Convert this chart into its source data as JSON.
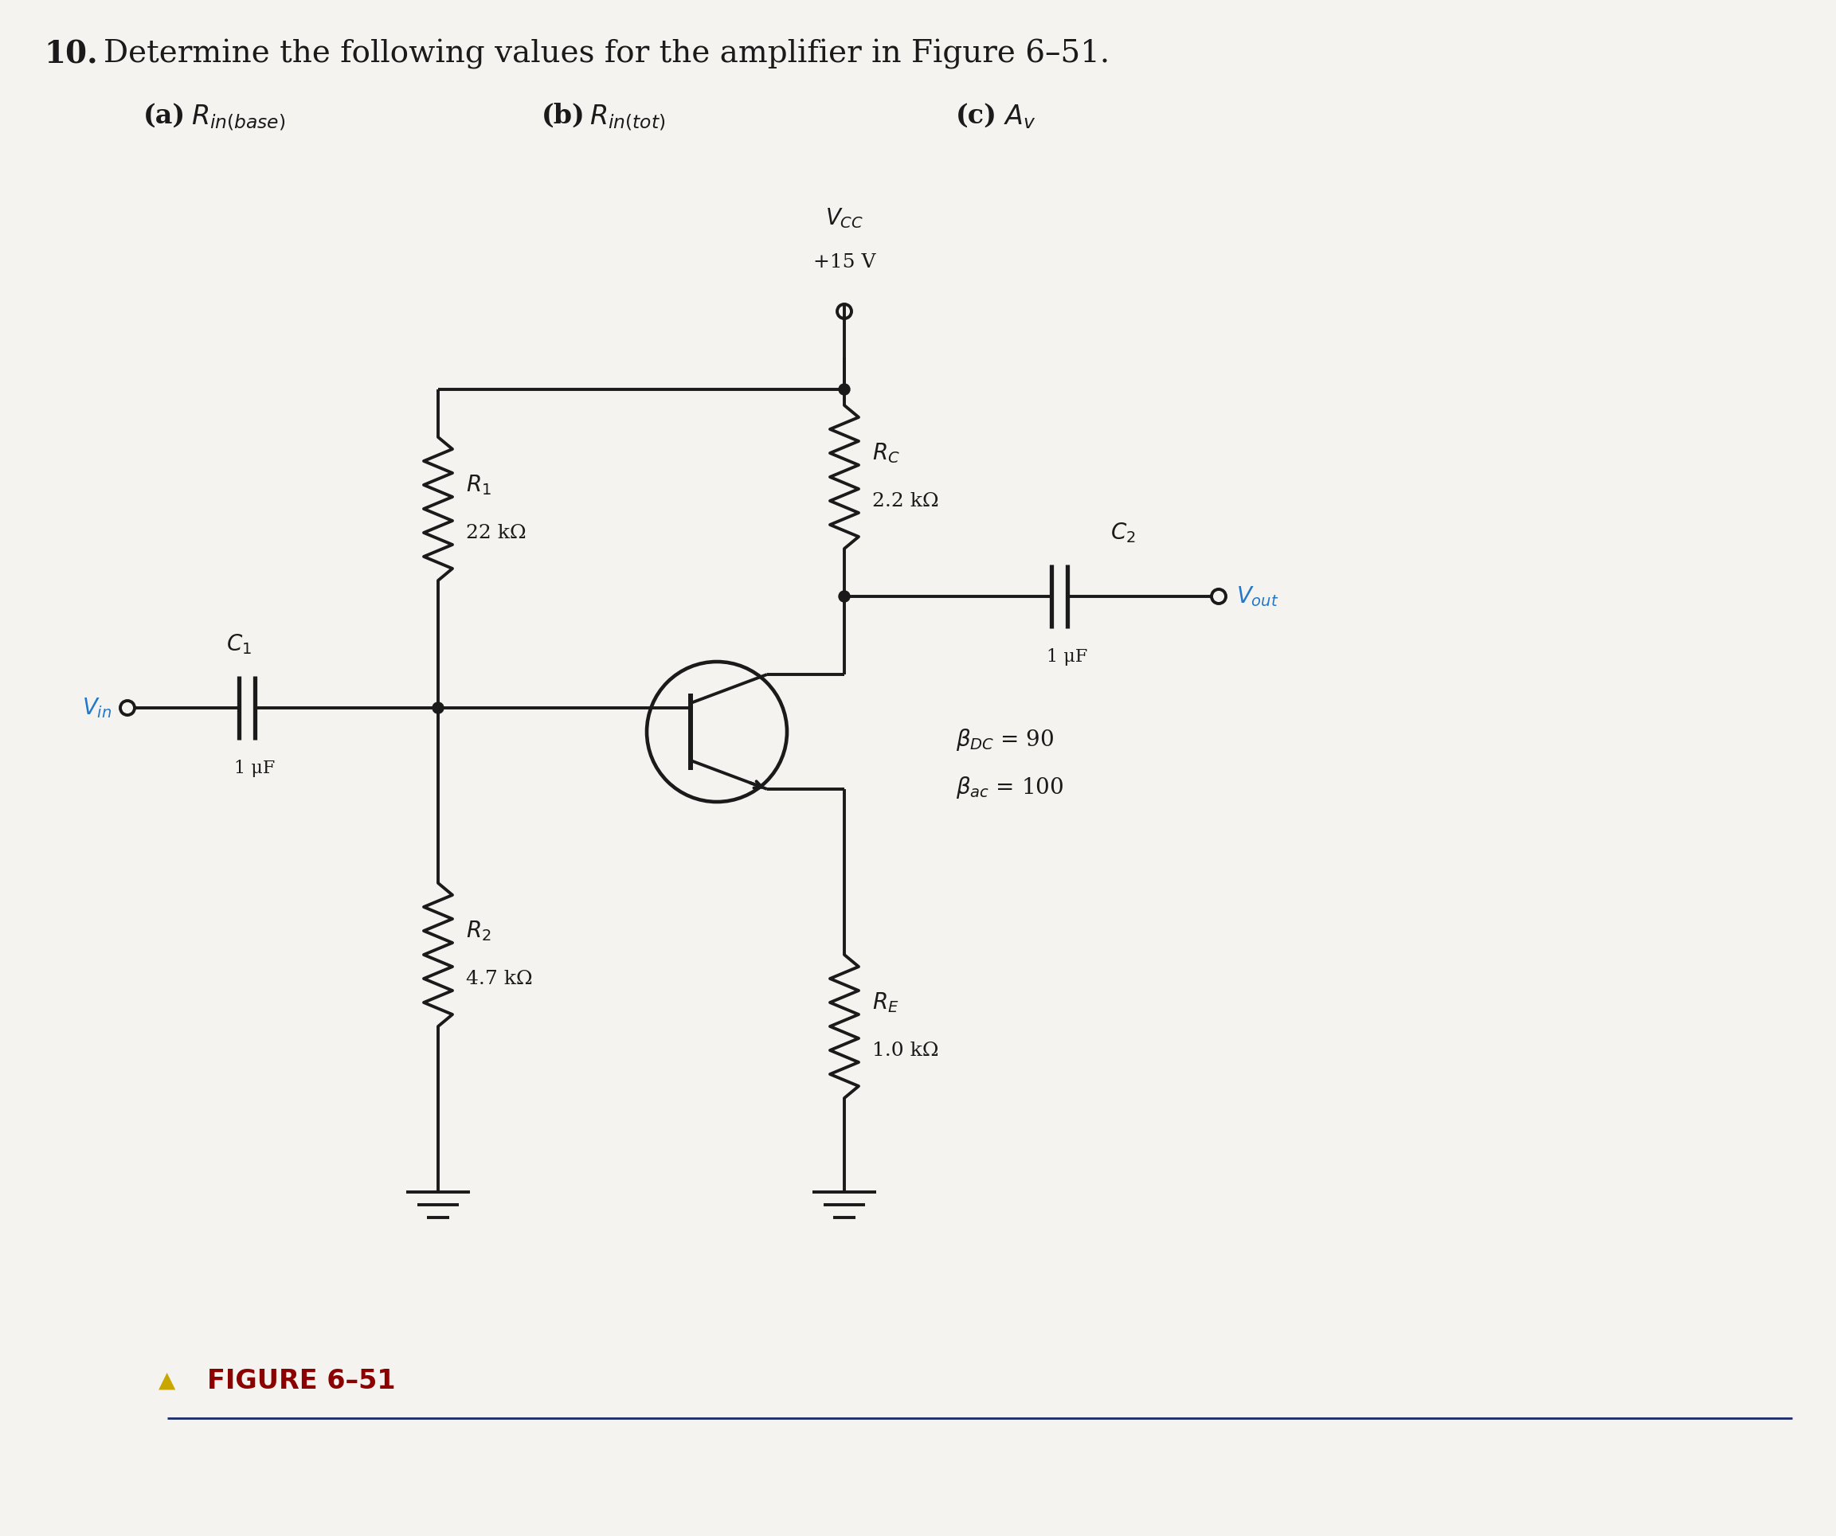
{
  "title_num": "10.",
  "title_text": "Determine the following values for the amplifier in Figure 6–51.",
  "sub_a": "(a)",
  "sub_a_math": "$R_{in(base)}$",
  "sub_b": "(b)",
  "sub_b_math": "$R_{in(tot)}$",
  "sub_c": "(c)",
  "sub_c_math": "$A_v$",
  "figure_label": "FIGURE 6–51",
  "bg_color": "#f5f3f0",
  "text_color": "#1a1a1a",
  "vcc_text1": "$V_{CC}$",
  "vcc_text2": "+15 V",
  "R1_sym": "$R_1$",
  "R1_val": "22 kΩ",
  "R2_sym": "$R_2$",
  "R2_val": "4.7 kΩ",
  "RC_sym": "$R_C$",
  "RC_val": "2.2 kΩ",
  "RE_sym": "$R_E$",
  "RE_val": "1.0 kΩ",
  "C1_sym": "$C_1$",
  "C1_val": "1 μF",
  "C2_sym": "$C_2$",
  "C2_val": "1 μF",
  "Vin_label": "$V_{in}$",
  "Vout_label": "$V_{out}$",
  "beta1": "$\\beta_{DC}$ = 90",
  "beta2": "$\\beta_{ac}$ = 100",
  "blue": "#2478c8",
  "black": "#1a1a1a",
  "dark_red": "#8b0000",
  "gold": "#c8a800",
  "navy": "#1a2a6a",
  "title_fontsize": 28,
  "sub_fontsize": 24,
  "label_fontsize": 20,
  "small_fontsize": 18
}
